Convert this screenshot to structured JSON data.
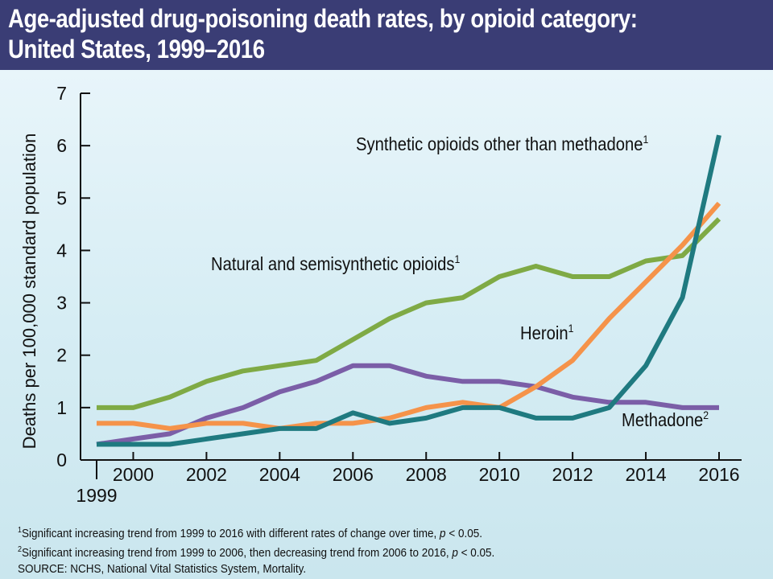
{
  "header": {
    "title_line1": "Age-adjusted drug-poisoning death rates, by opioid category:",
    "title_line2": "United States, 1999–2016"
  },
  "chart_data": {
    "type": "line",
    "title": "Age-adjusted drug-poisoning death rates, by opioid category: United States, 1999–2016",
    "xlabel": "",
    "ylabel": "Deaths per 100,000 standard population",
    "x": [
      1999,
      2000,
      2001,
      2002,
      2003,
      2004,
      2005,
      2006,
      2007,
      2008,
      2009,
      2010,
      2011,
      2012,
      2013,
      2014,
      2015,
      2016
    ],
    "xticks": [
      1999,
      2000,
      2002,
      2004,
      2006,
      2008,
      2010,
      2012,
      2014,
      2016
    ],
    "xtick_labels": [
      "1999",
      "2000",
      "2002",
      "2004",
      "2006",
      "2008",
      "2010",
      "2012",
      "2014",
      "2016"
    ],
    "xlim": [
      1999,
      2016
    ],
    "ylim": [
      0,
      7
    ],
    "yticks": [
      0,
      1,
      2,
      3,
      4,
      5,
      6,
      7
    ],
    "ytick_labels": [
      "0",
      "1",
      "2",
      "3",
      "4",
      "5",
      "6",
      "7"
    ],
    "grid": false,
    "legend": "inline labels",
    "series": [
      {
        "name": "Natural and semisynthetic opioids",
        "superscript": "1",
        "color": "#7faa45",
        "values": [
          1.0,
          1.0,
          1.2,
          1.5,
          1.7,
          1.8,
          1.9,
          2.3,
          2.7,
          3.0,
          3.1,
          3.5,
          3.7,
          3.5,
          3.5,
          3.8,
          3.9,
          4.6
        ]
      },
      {
        "name": "Methadone",
        "superscript": "2",
        "color": "#7b5ea7",
        "values": [
          0.3,
          0.4,
          0.5,
          0.8,
          1.0,
          1.3,
          1.5,
          1.8,
          1.8,
          1.6,
          1.5,
          1.5,
          1.4,
          1.2,
          1.1,
          1.1,
          1.0,
          1.0
        ]
      },
      {
        "name": "Heroin",
        "superscript": "1",
        "color": "#f5934a",
        "values": [
          0.7,
          0.7,
          0.6,
          0.7,
          0.7,
          0.6,
          0.7,
          0.7,
          0.8,
          1.0,
          1.1,
          1.0,
          1.4,
          1.9,
          2.7,
          3.4,
          4.1,
          4.9
        ]
      },
      {
        "name": "Synthetic opioids other than methadone",
        "superscript": "1",
        "color": "#1f7a80",
        "values": [
          0.3,
          0.3,
          0.3,
          0.4,
          0.5,
          0.6,
          0.6,
          0.9,
          0.7,
          0.8,
          1.0,
          1.0,
          0.8,
          0.8,
          1.0,
          1.8,
          3.1,
          6.2
        ]
      }
    ]
  },
  "footnotes": {
    "note1_mark": "1",
    "note1_text": "Significant increasing trend from 1999 to 2016 with different rates of change over time, ",
    "note1_p": "p",
    "note1_end": " < 0.05.",
    "note2_mark": "2",
    "note2_text": "Significant increasing trend from 1999 to 2006, then decreasing trend from 2006 to 2016, ",
    "note2_p": "p",
    "note2_end": " < 0.05.",
    "source": "SOURCE: NCHS, National Vital Statistics System, Mortality."
  }
}
